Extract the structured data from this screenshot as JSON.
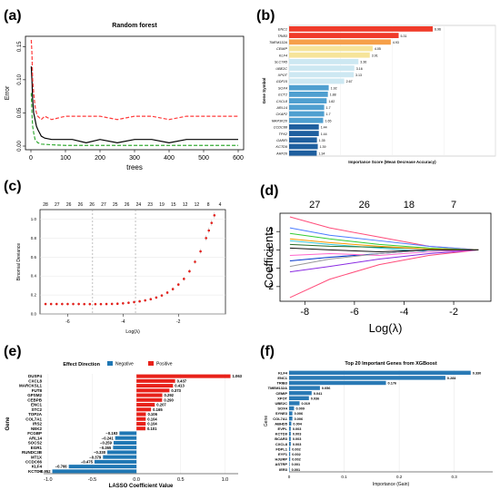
{
  "panels": {
    "a": {
      "letter": "(a)"
    },
    "b": {
      "letter": "(b)"
    },
    "c": {
      "letter": "(c)"
    },
    "d": {
      "letter": "(d)"
    },
    "e": {
      "letter": "(e)"
    },
    "f": {
      "letter": "(f)"
    }
  },
  "chart_data": [
    {
      "panel": "a",
      "type": "line",
      "title": "Random forest",
      "xlabel": "trees",
      "ylabel": "Error",
      "xlim": [
        0,
        600
      ],
      "ylim": [
        0,
        0.16
      ],
      "xticks": [
        "0",
        "100",
        "200",
        "300",
        "400",
        "500",
        "600"
      ],
      "yticks": [
        "0.00",
        "0.05",
        "0.10",
        "0.15"
      ],
      "series": [
        {
          "color": "#000000",
          "x": [
            1,
            3,
            5,
            8,
            12,
            16,
            20,
            25,
            30,
            40,
            60,
            90,
            120,
            160,
            200,
            250,
            300,
            350,
            400,
            450,
            500,
            600
          ],
          "y": [
            0.12,
            0.1,
            0.07,
            0.05,
            0.04,
            0.03,
            0.025,
            0.02,
            0.015,
            0.012,
            0.01,
            0.01,
            0.01,
            0.005,
            0.01,
            0.005,
            0.01,
            0.01,
            0.005,
            0.01,
            0.01,
            0.01
          ]
        },
        {
          "color": "#ff3b3b",
          "dashed": true,
          "x": [
            1,
            3,
            5,
            8,
            12,
            16,
            20,
            30,
            40,
            60,
            100,
            150,
            200,
            250,
            300,
            350,
            400,
            450,
            500,
            600
          ],
          "y": [
            0.16,
            0.14,
            0.1,
            0.08,
            0.06,
            0.05,
            0.045,
            0.04,
            0.045,
            0.04,
            0.045,
            0.045,
            0.045,
            0.04,
            0.045,
            0.045,
            0.04,
            0.045,
            0.045,
            0.045
          ]
        },
        {
          "color": "#33aa33",
          "dashed": true,
          "x": [
            1,
            3,
            5,
            8,
            12,
            20,
            30,
            60,
            100,
            200,
            300,
            400,
            500,
            600
          ],
          "y": [
            0.08,
            0.05,
            0.03,
            0.02,
            0.01,
            0.005,
            0.003,
            0.002,
            0.001,
            0.001,
            0.001,
            0.001,
            0.001,
            0.001
          ]
        }
      ]
    },
    {
      "panel": "b",
      "type": "bar",
      "orientation": "horizontal",
      "title": "",
      "xlabel": "Importance Score (Mean Decrease Accuracy)",
      "ylabel": "Gene Symbol",
      "xlim": [
        0,
        10
      ],
      "categories": [
        "ENC1",
        "TRIB3",
        "TMEM132A",
        "CEMIP",
        "KLF4",
        "SLC7A5",
        "UBE2C",
        "XPOT",
        "GDF15",
        "SOX4",
        "ECT2",
        "CXCL8",
        "ARL14",
        "CKAP2",
        "MAP3K20",
        "CCDC88",
        "TPX2",
        "GAREI",
        "KCTD9",
        "ARF26"
      ],
      "values": [
        6.96,
        5.31,
        4.93,
        4.05,
        3.91,
        3.36,
        3.16,
        3.13,
        2.67,
        1.92,
        1.88,
        1.82,
        1.7,
        1.7,
        1.65,
        1.44,
        1.44,
        1.35,
        1.39,
        1.34
      ],
      "value_labels": [
        "6.96",
        "5.31",
        "4.93",
        "4.05",
        "3.91",
        "3.36",
        "3.16",
        "3.13",
        "2.67",
        "1.92",
        "1.88",
        "1.82",
        "1.7",
        "1.7",
        "1.65",
        "1.44",
        "1.44",
        "1.35",
        "1.39",
        "1.34"
      ]
    },
    {
      "panel": "c",
      "type": "scatter",
      "title": "",
      "xlabel": "Log(λ)",
      "ylabel": "Binomial Deviance",
      "xlim": [
        -7,
        -0.3
      ],
      "ylim": [
        0,
        1.1
      ],
      "xticks": [
        "-6",
        "-4",
        "-2"
      ],
      "yticks": [
        "0.0",
        "0.2",
        "0.4",
        "0.6",
        "0.8",
        "1.0"
      ],
      "top_ticks": [
        "28",
        "27",
        "26",
        "26",
        "26",
        "27",
        "25",
        "26",
        "24",
        "23",
        "19",
        "15",
        "12",
        "12",
        "8",
        "4"
      ],
      "vlines_x": [
        -5.1,
        -3.55
      ],
      "x": [
        -6.8,
        -6.6,
        -6.4,
        -6.2,
        -6.0,
        -5.8,
        -5.6,
        -5.4,
        -5.2,
        -5.0,
        -4.8,
        -4.6,
        -4.4,
        -4.2,
        -4.0,
        -3.8,
        -3.6,
        -3.4,
        -3.2,
        -3.0,
        -2.8,
        -2.6,
        -2.4,
        -2.2,
        -2.0,
        -1.8,
        -1.6,
        -1.4,
        -1.2,
        -1.0,
        -0.9,
        -0.8,
        -0.7
      ],
      "y": [
        0.105,
        0.105,
        0.105,
        0.105,
        0.105,
        0.105,
        0.105,
        0.104,
        0.104,
        0.104,
        0.104,
        0.105,
        0.106,
        0.108,
        0.112,
        0.118,
        0.125,
        0.133,
        0.143,
        0.156,
        0.173,
        0.195,
        0.225,
        0.262,
        0.31,
        0.37,
        0.45,
        0.55,
        0.66,
        0.8,
        0.88,
        0.96,
        1.04
      ]
    },
    {
      "panel": "d",
      "type": "line",
      "title": "",
      "xlabel": "Log(λ)",
      "ylabel": "Coefficients",
      "xlim": [
        -9,
        -0.5
      ],
      "ylim": [
        -2.8,
        2
      ],
      "xticks": [
        "-8",
        "-6",
        "-4",
        "-2"
      ],
      "yticks": [
        "-2",
        "-1",
        "0",
        "1"
      ],
      "top_ticks": [
        "27",
        "26",
        "18",
        "7"
      ],
      "series": [
        {
          "color": "#ff4c7a",
          "y": [
            -2.6,
            -1.6,
            -0.8,
            -0.3,
            0
          ]
        },
        {
          "color": "#ff4c7a",
          "y": [
            1.8,
            1.2,
            0.7,
            0.2,
            0
          ]
        },
        {
          "color": "#4a7bff",
          "y": [
            1.2,
            0.8,
            0.5,
            0.2,
            0
          ]
        },
        {
          "color": "#2ec4d6",
          "y": [
            0.5,
            0.3,
            0.1,
            -0.1,
            0
          ]
        },
        {
          "color": "#8a2be2",
          "y": [
            -1.2,
            -0.9,
            -0.5,
            -0.2,
            0
          ]
        },
        {
          "color": "#33cc33",
          "y": [
            0.9,
            0.6,
            0.3,
            0.1,
            0
          ]
        },
        {
          "color": "#0033cc",
          "y": [
            -0.6,
            -0.4,
            -0.2,
            0,
            0
          ]
        },
        {
          "color": "#2a6d2a",
          "y": [
            0.3,
            0.2,
            0.15,
            0.05,
            0
          ]
        },
        {
          "color": "#ff66cc",
          "y": [
            -0.3,
            -0.2,
            -0.3,
            -0.1,
            0
          ]
        },
        {
          "color": "#ff9900",
          "y": [
            0.6,
            0.4,
            0.2,
            0.05,
            0
          ]
        },
        {
          "color": "#999999",
          "y": [
            -0.9,
            -0.5,
            -0.2,
            0,
            0
          ]
        },
        {
          "color": "#111111",
          "y": [
            0.1,
            0.0,
            -0.1,
            0,
            0
          ]
        }
      ]
    },
    {
      "panel": "e",
      "type": "bar",
      "orientation": "horizontal",
      "title": "",
      "legend_title": "Effect Direction",
      "legend": [
        {
          "name": "Negative",
          "color": "#1f77b4"
        },
        {
          "name": "Positive",
          "color": "#e8211a"
        }
      ],
      "xlabel": "LASSO Coefficient Value",
      "ylabel": "Gene",
      "xlim": [
        -1.05,
        1.15
      ],
      "xticks": [
        "-1.0",
        "-0.5",
        "0.0",
        "0.5",
        "1.0"
      ],
      "categories": [
        "DUSP4",
        "CXCL8",
        "MARCKSL1",
        "FUT8",
        "GPSM2",
        "CEBPB",
        "ENC1",
        "STC2",
        "TOP2A",
        "COL7A1",
        "IRS2",
        "NEK2",
        "FCGBP",
        "ARL14",
        "SOCS2",
        "EGR1",
        "RUNDC3B",
        "MT1X",
        "CCDC66",
        "KLF4",
        "KCTD9"
      ],
      "values": [
        1.063,
        0.437,
        0.413,
        0.373,
        0.292,
        0.29,
        0.207,
        0.165,
        0.106,
        0.104,
        0.104,
        0.101,
        -0.193,
        -0.241,
        -0.259,
        -0.265,
        -0.33,
        -0.379,
        -0.475,
        -0.766,
        -0.952
      ],
      "value_labels": [
        "1.063",
        "0.437",
        "0.413",
        "0.373",
        "0.292",
        "0.290",
        "0.207",
        "0.165",
        "0.106",
        "0.104",
        "0.104",
        "0.101",
        "−0.193",
        "−0.241",
        "−0.259",
        "−0.265",
        "−0.330",
        "−0.379",
        "−0.475",
        "−0.766",
        "−0.952"
      ]
    },
    {
      "panel": "f",
      "type": "bar",
      "orientation": "horizontal",
      "title": "Top 20 Important Genes from XGBoost",
      "xlabel": "Importance (Gain)",
      "ylabel": "Gene",
      "xlim": [
        0,
        0.37
      ],
      "xticks": [
        "0",
        "0.1",
        "0.2",
        "0.3"
      ],
      "categories": [
        "KLF4",
        "ENC1",
        "TRIB3",
        "TMEM132A",
        "CEMIP",
        "XPOT",
        "UBE2C",
        "SOX4",
        "SYNE3",
        "COL7A1",
        "ABHD5",
        "EVPL",
        "KCTD9",
        "BCAR3",
        "CXCL8",
        "FDPL1",
        "EYF1",
        "HJURP",
        "ASTRP",
        "IER3"
      ],
      "values": [
        0.33,
        0.284,
        0.176,
        0.056,
        0.041,
        0.036,
        0.019,
        0.009,
        0.006,
        0.006,
        0.004,
        0.003,
        0.003,
        0.003,
        0.003,
        0.002,
        0.002,
        0.002,
        0.001,
        0.001
      ],
      "value_labels": [
        "0.330",
        "0.284",
        "0.176",
        "0.056",
        "0.041",
        "0.036",
        "0.019",
        "0.009",
        "0.006",
        "0.006",
        "0.004",
        "0.003",
        "0.003",
        "0.003",
        "0.003",
        "0.002",
        "0.002",
        "0.002",
        "0.001",
        "0.001"
      ]
    }
  ]
}
